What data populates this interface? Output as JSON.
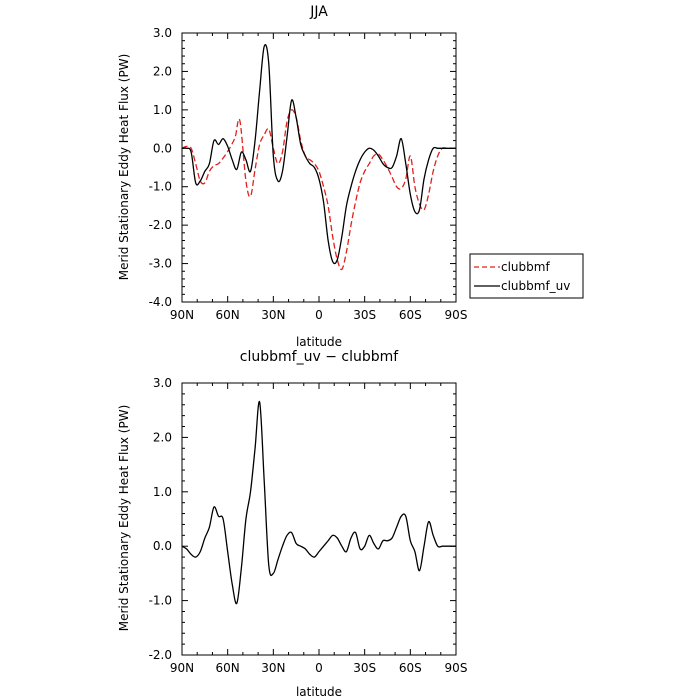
{
  "chart_data": [
    {
      "type": "line",
      "title": "JJA",
      "xlabel": "latitude",
      "ylabel": "Merid Stationary Eddy Heat Flux (PW)",
      "xlim": [
        90,
        -90
      ],
      "ylim": [
        -4.0,
        3.0
      ],
      "xticks": [
        {
          "value": 90,
          "label": "90N"
        },
        {
          "value": 60,
          "label": "60N"
        },
        {
          "value": 30,
          "label": "30N"
        },
        {
          "value": 0,
          "label": "0"
        },
        {
          "value": -30,
          "label": "30S"
        },
        {
          "value": -60,
          "label": "60S"
        },
        {
          "value": -90,
          "label": "90S"
        }
      ],
      "yticks": [
        {
          "value": 3.0,
          "label": "3.0"
        },
        {
          "value": 2.0,
          "label": "2.0"
        },
        {
          "value": 1.0,
          "label": "1.0"
        },
        {
          "value": 0.0,
          "label": "0.0"
        },
        {
          "value": -1.0,
          "label": "-1.0"
        },
        {
          "value": -2.0,
          "label": "-2.0"
        },
        {
          "value": -3.0,
          "label": "-3.0"
        },
        {
          "value": -4.0,
          "label": "-4.0"
        }
      ],
      "legend_position": "outside-right",
      "series": [
        {
          "name": "clubbmf",
          "color": "#e0201b",
          "dash": "dashed",
          "x": [
            90,
            87,
            84,
            81,
            78,
            75,
            72,
            69,
            66,
            62,
            58,
            55,
            52,
            48,
            45,
            42,
            39,
            36,
            33,
            30,
            27,
            24,
            21,
            18,
            15,
            12,
            9,
            6,
            3,
            0,
            -3,
            -6,
            -9,
            -12,
            -15,
            -18,
            -21,
            -24,
            -27,
            -30,
            -33,
            -36,
            -39,
            -42,
            -45,
            -48,
            -51,
            -54,
            -57,
            -60,
            -63,
            -66,
            -69,
            -72,
            -75,
            -78,
            -81,
            -84,
            -87,
            -90
          ],
          "y": [
            0.0,
            0.05,
            0.0,
            -0.4,
            -0.85,
            -0.9,
            -0.6,
            -0.45,
            -0.4,
            -0.2,
            0.05,
            0.3,
            0.72,
            -0.85,
            -1.25,
            -0.55,
            0.1,
            0.35,
            0.5,
            0.0,
            -0.4,
            -0.1,
            0.7,
            1.0,
            0.8,
            0.2,
            -0.2,
            -0.3,
            -0.4,
            -0.6,
            -1.0,
            -1.5,
            -2.3,
            -2.9,
            -3.15,
            -2.7,
            -2.0,
            -1.4,
            -0.9,
            -0.6,
            -0.4,
            -0.2,
            -0.15,
            -0.3,
            -0.5,
            -0.75,
            -1.0,
            -1.05,
            -0.8,
            -0.2,
            -1.0,
            -1.45,
            -1.6,
            -1.2,
            -0.6,
            -0.2,
            0.0,
            0.0,
            0.0,
            0.0
          ]
        },
        {
          "name": "clubbmf_uv",
          "color": "#000000",
          "dash": "solid",
          "x": [
            90,
            87,
            84,
            81,
            78,
            75,
            72,
            69,
            66,
            63,
            60,
            57,
            54,
            51,
            48,
            45,
            42,
            39,
            36,
            33,
            30,
            27,
            24,
            21,
            18,
            15,
            12,
            9,
            6,
            3,
            0,
            -3,
            -6,
            -9,
            -12,
            -15,
            -18,
            -21,
            -24,
            -27,
            -30,
            -33,
            -36,
            -39,
            -42,
            -45,
            -48,
            -51,
            -54,
            -57,
            -60,
            -63,
            -66,
            -69,
            -72,
            -75,
            -78,
            -81,
            -84,
            -87,
            -90
          ],
          "y": [
            0.0,
            0.0,
            -0.1,
            -0.9,
            -0.85,
            -0.6,
            -0.4,
            0.2,
            0.1,
            0.25,
            0.05,
            -0.3,
            -0.55,
            -0.1,
            -0.3,
            -0.6,
            0.2,
            1.5,
            2.65,
            2.2,
            -0.2,
            -0.85,
            -0.6,
            0.3,
            1.25,
            0.8,
            0.1,
            -0.2,
            -0.4,
            -0.5,
            -0.8,
            -1.4,
            -2.4,
            -2.95,
            -2.9,
            -2.3,
            -1.5,
            -1.0,
            -0.6,
            -0.3,
            -0.1,
            -0.0,
            -0.05,
            -0.2,
            -0.4,
            -0.5,
            -0.5,
            -0.2,
            0.25,
            -0.4,
            -1.2,
            -1.65,
            -1.6,
            -0.8,
            -0.3,
            0.0,
            0.0,
            0.0,
            0.0,
            0.0,
            0.0
          ]
        }
      ]
    },
    {
      "type": "line",
      "title": "clubbmf_uv − clubbmf",
      "xlabel": "latitude",
      "ylabel": "Merid Stationary Eddy Heat Flux (PW)",
      "xlim": [
        90,
        -90
      ],
      "ylim": [
        -2.0,
        3.0
      ],
      "xticks": [
        {
          "value": 90,
          "label": "90N"
        },
        {
          "value": 60,
          "label": "60N"
        },
        {
          "value": 30,
          "label": "30N"
        },
        {
          "value": 0,
          "label": "0"
        },
        {
          "value": -30,
          "label": "30S"
        },
        {
          "value": -60,
          "label": "60S"
        },
        {
          "value": -90,
          "label": "90S"
        }
      ],
      "yticks": [
        {
          "value": 3.0,
          "label": "3.0"
        },
        {
          "value": 2.0,
          "label": "2.0"
        },
        {
          "value": 1.0,
          "label": "1.0"
        },
        {
          "value": 0.0,
          "label": "0.0"
        },
        {
          "value": -1.0,
          "label": "-1.0"
        },
        {
          "value": -2.0,
          "label": "-2.0"
        }
      ],
      "series": [
        {
          "color": "#000000",
          "dash": "solid",
          "x": [
            90,
            87,
            84,
            81,
            78,
            75,
            72,
            69,
            66,
            63,
            60,
            57,
            54,
            51,
            48,
            45,
            42,
            39,
            36,
            33,
            30,
            27,
            24,
            21,
            18,
            15,
            12,
            9,
            6,
            3,
            0,
            -3,
            -6,
            -9,
            -12,
            -15,
            -18,
            -21,
            -24,
            -27,
            -30,
            -33,
            -36,
            -39,
            -42,
            -45,
            -48,
            -51,
            -54,
            -57,
            -60,
            -63,
            -66,
            -69,
            -72,
            -75,
            -78,
            -81,
            -84,
            -87,
            -90
          ],
          "y": [
            0.0,
            -0.05,
            -0.15,
            -0.2,
            -0.1,
            0.15,
            0.35,
            0.72,
            0.55,
            0.5,
            -0.1,
            -0.7,
            -1.05,
            -0.4,
            0.5,
            1.0,
            1.8,
            2.65,
            1.2,
            -0.35,
            -0.5,
            -0.25,
            0.0,
            0.2,
            0.25,
            0.05,
            0.0,
            -0.05,
            -0.15,
            -0.2,
            -0.1,
            0.0,
            0.1,
            0.2,
            0.15,
            0.0,
            -0.1,
            0.15,
            0.25,
            -0.05,
            0.0,
            0.2,
            0.05,
            -0.05,
            0.1,
            0.1,
            0.15,
            0.35,
            0.55,
            0.55,
            0.1,
            -0.1,
            -0.45,
            0.0,
            0.45,
            0.2,
            0.0,
            0.0,
            0.0,
            0.0,
            0.0
          ]
        }
      ]
    }
  ]
}
